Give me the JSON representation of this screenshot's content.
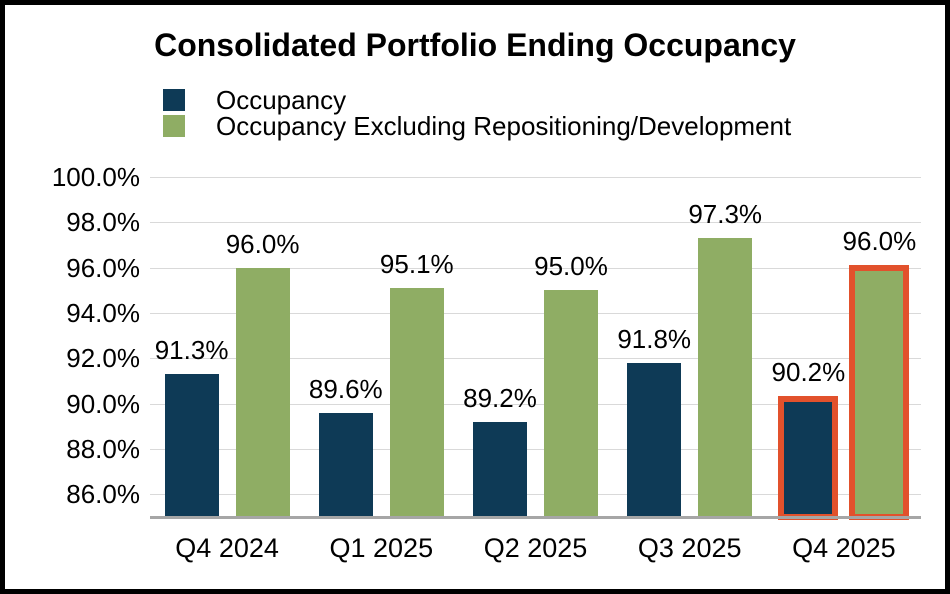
{
  "title": "Consolidated Portfolio Ending Occupancy",
  "legend": {
    "items": [
      {
        "label": "Occupancy",
        "color": "#0e3a56"
      },
      {
        "label": "Occupancy Excluding Repositioning/Development",
        "color": "#8fad64"
      }
    ]
  },
  "chart_data": {
    "type": "bar",
    "title": "Consolidated Portfolio Ending Occupancy",
    "categories": [
      "Q4 2024",
      "Q1 2025",
      "Q2 2025",
      "Q3 2025",
      "Q4 2025"
    ],
    "series": [
      {
        "name": "Occupancy",
        "color": "#0e3a56",
        "values": [
          91.3,
          89.6,
          89.2,
          91.8,
          90.2
        ],
        "labels": [
          "91.3%",
          "89.6%",
          "89.2%",
          "91.8%",
          "90.2%"
        ]
      },
      {
        "name": "Occupancy Excluding Repositioning/Development",
        "color": "#8fad64",
        "values": [
          96.0,
          95.1,
          95.0,
          97.3,
          96.0
        ],
        "labels": [
          "96.0%",
          "95.1%",
          "95.0%",
          "97.3%",
          "96.0%"
        ]
      }
    ],
    "highlighted_category": "Q4 2025",
    "highlight_color": "#e2512c",
    "y_ticks": [
      "100.0%",
      "98.0%",
      "96.0%",
      "94.0%",
      "92.0%",
      "90.0%",
      "88.0%",
      "86.0%"
    ],
    "ylim": [
      85,
      100
    ],
    "grid": true,
    "gridline_color": "#d9d9d9",
    "axis_line_color": "#a6a6a6",
    "legend_position": "top-left",
    "data_labels_shown": true
  }
}
